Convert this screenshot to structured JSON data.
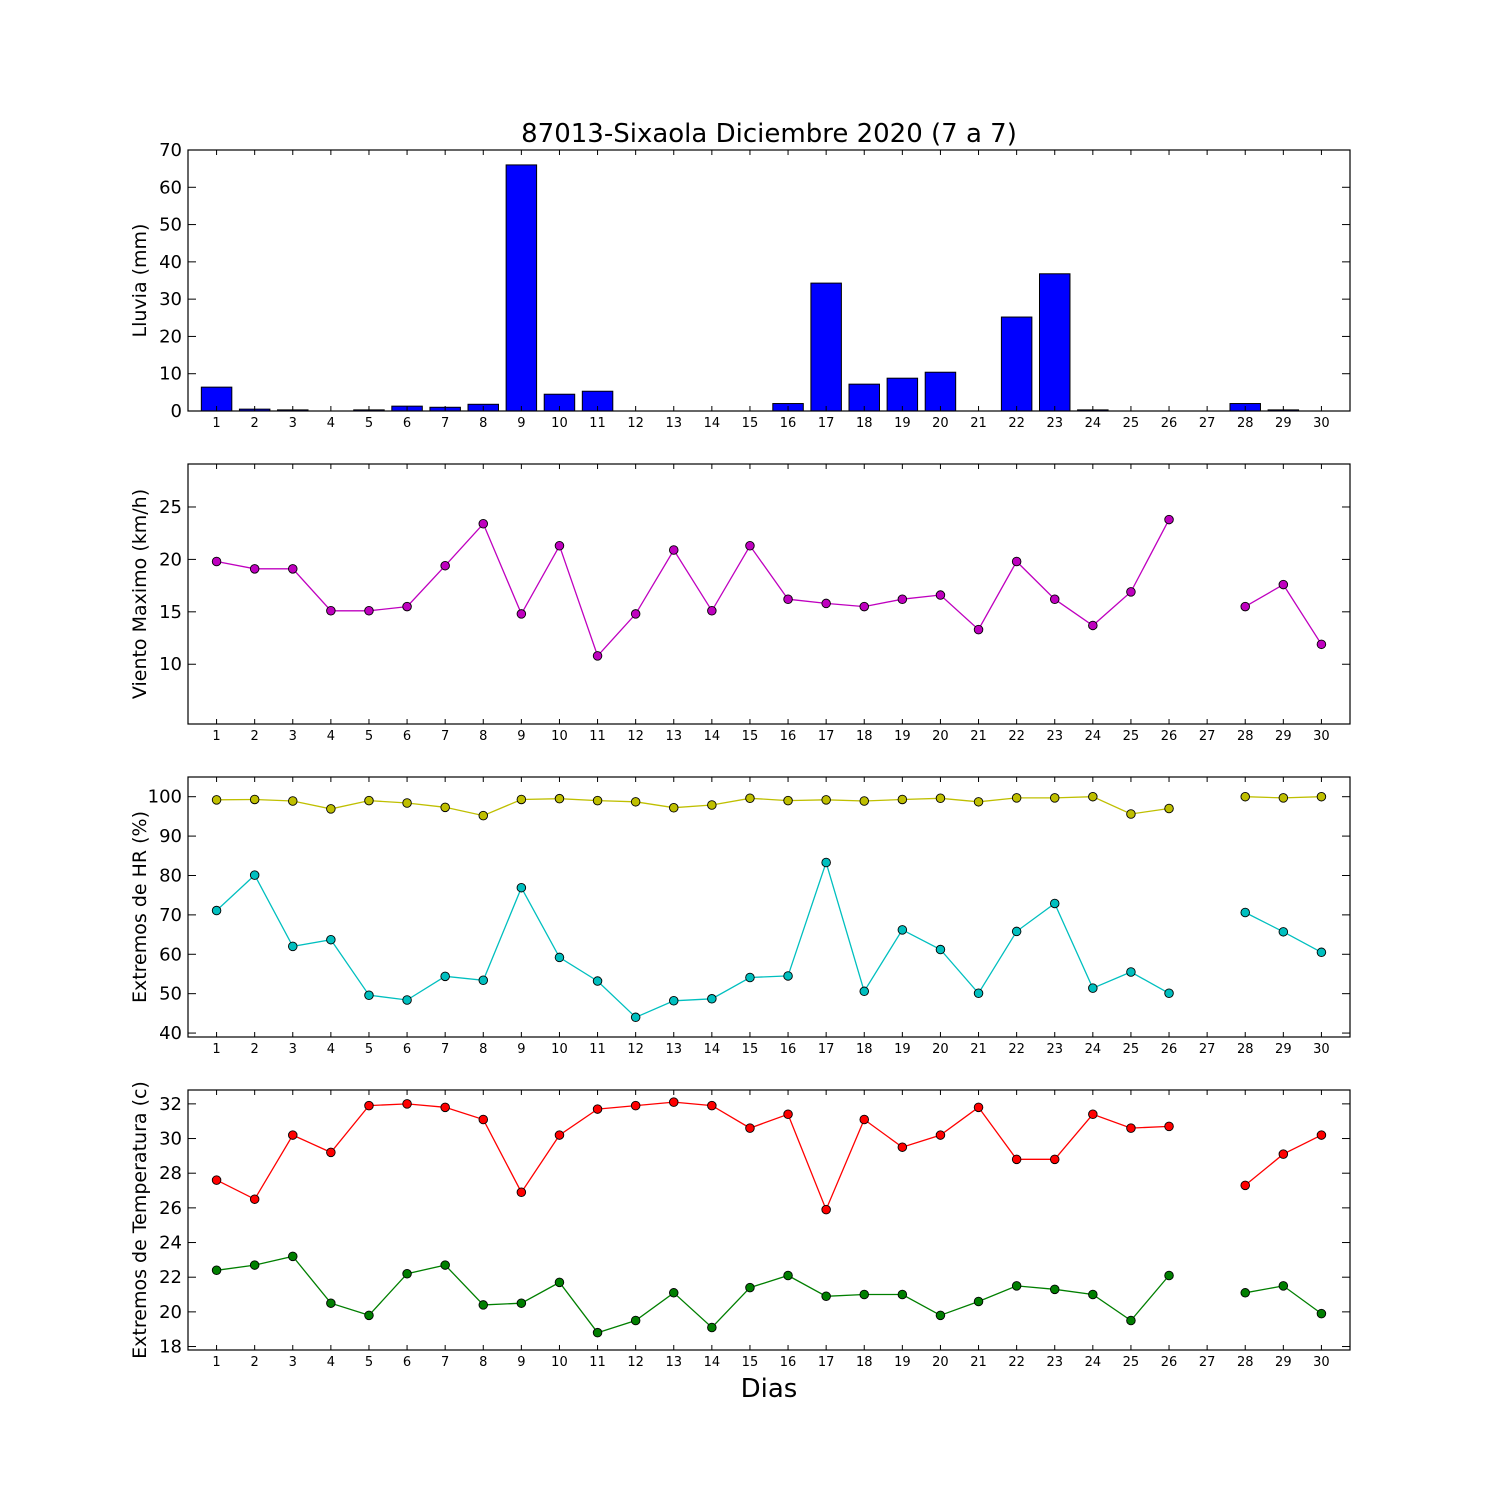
{
  "chart_data": [
    {
      "type": "bar",
      "title": "87013-Sixaola Diciembre 2020  (7 a 7)",
      "ylabel": "Lluvia (mm)",
      "ylim": [
        0,
        70
      ],
      "yticks": [
        0,
        10,
        20,
        30,
        40,
        50,
        60,
        70
      ],
      "color": "#0000ff",
      "categories": [
        "1",
        "2",
        "3",
        "4",
        "5",
        "6",
        "7",
        "8",
        "9",
        "10",
        "11",
        "12",
        "13",
        "14",
        "15",
        "16",
        "17",
        "18",
        "19",
        "20",
        "21",
        "22",
        "23",
        "24",
        "25",
        "26",
        "27",
        "28",
        "29",
        "30"
      ],
      "values": [
        6.4,
        0.5,
        0.3,
        0,
        0.3,
        1.3,
        1.0,
        1.8,
        66.0,
        4.5,
        5.3,
        0,
        0,
        0,
        0,
        2.0,
        34.3,
        7.2,
        8.8,
        10.4,
        0,
        25.2,
        36.8,
        0.3,
        0,
        0,
        null,
        2.0,
        0.3,
        0
      ]
    },
    {
      "type": "line",
      "ylabel": "Viento Maximo (km/h)",
      "ylim": [
        4.3,
        29.1
      ],
      "yticks": [
        10,
        15,
        20,
        25
      ],
      "categories": [
        "1",
        "2",
        "3",
        "4",
        "5",
        "6",
        "7",
        "8",
        "9",
        "10",
        "11",
        "12",
        "13",
        "14",
        "15",
        "16",
        "17",
        "18",
        "19",
        "20",
        "21",
        "22",
        "23",
        "24",
        "25",
        "26",
        "27",
        "28",
        "29",
        "30"
      ],
      "series": [
        {
          "color": "#bf00bf",
          "values": [
            19.8,
            19.1,
            19.1,
            15.1,
            15.1,
            15.5,
            19.4,
            23.4,
            14.8,
            21.3,
            10.8,
            14.8,
            20.9,
            15.1,
            21.3,
            16.2,
            15.8,
            15.5,
            16.2,
            16.6,
            13.3,
            19.8,
            16.2,
            13.7,
            16.9,
            23.8,
            null,
            15.5,
            17.6,
            11.9
          ]
        }
      ]
    },
    {
      "type": "line",
      "ylabel": "Extremos de HR (%)",
      "ylim": [
        39,
        105
      ],
      "yticks": [
        40,
        50,
        60,
        70,
        80,
        90,
        100
      ],
      "categories": [
        "1",
        "2",
        "3",
        "4",
        "5",
        "6",
        "7",
        "8",
        "9",
        "10",
        "11",
        "12",
        "13",
        "14",
        "15",
        "16",
        "17",
        "18",
        "19",
        "20",
        "21",
        "22",
        "23",
        "24",
        "25",
        "26",
        "27",
        "28",
        "29",
        "30"
      ],
      "series": [
        {
          "color": "#bfbf00",
          "values": [
            99.2,
            99.3,
            98.9,
            96.9,
            99.0,
            98.4,
            97.3,
            95.2,
            99.3,
            99.5,
            99.0,
            98.7,
            97.2,
            97.9,
            99.6,
            99.0,
            99.2,
            98.9,
            99.3,
            99.6,
            98.7,
            99.7,
            99.7,
            100.0,
            95.6,
            97.0,
            null,
            100.0,
            99.7,
            100.0
          ]
        },
        {
          "color": "#00bfbf",
          "values": [
            71.1,
            80.1,
            62.0,
            63.7,
            49.6,
            48.4,
            54.4,
            53.4,
            76.9,
            59.2,
            53.2,
            44.0,
            48.2,
            48.7,
            54.1,
            54.5,
            83.3,
            50.6,
            66.2,
            61.2,
            50.1,
            65.8,
            72.9,
            51.4,
            55.5,
            50.1,
            null,
            70.6,
            65.7,
            60.5
          ]
        }
      ]
    },
    {
      "type": "line",
      "ylabel": "Extremos de Temperatura (c)",
      "xlabel": "Dias",
      "ylim": [
        17.8,
        32.8
      ],
      "yticks": [
        18,
        20,
        22,
        24,
        26,
        28,
        30,
        32
      ],
      "categories": [
        "1",
        "2",
        "3",
        "4",
        "5",
        "6",
        "7",
        "8",
        "9",
        "10",
        "11",
        "12",
        "13",
        "14",
        "15",
        "16",
        "17",
        "18",
        "19",
        "20",
        "21",
        "22",
        "23",
        "24",
        "25",
        "26",
        "27",
        "28",
        "29",
        "30"
      ],
      "series": [
        {
          "color": "#ff0000",
          "values": [
            27.6,
            26.5,
            30.2,
            29.2,
            31.9,
            32.0,
            31.8,
            31.1,
            26.9,
            30.2,
            31.7,
            31.9,
            32.1,
            31.9,
            30.6,
            31.4,
            25.9,
            31.1,
            29.5,
            30.2,
            31.8,
            28.8,
            28.8,
            31.4,
            30.6,
            30.7,
            null,
            27.3,
            29.1,
            30.2
          ]
        },
        {
          "color": "#007f00",
          "values": [
            22.4,
            22.7,
            23.2,
            20.5,
            19.8,
            22.2,
            22.7,
            20.4,
            20.5,
            21.7,
            18.8,
            19.5,
            21.1,
            19.1,
            21.4,
            22.1,
            20.9,
            21.0,
            21.0,
            19.8,
            20.6,
            21.5,
            21.3,
            21.0,
            19.5,
            22.1,
            null,
            21.1,
            21.5,
            19.9
          ]
        }
      ]
    }
  ]
}
